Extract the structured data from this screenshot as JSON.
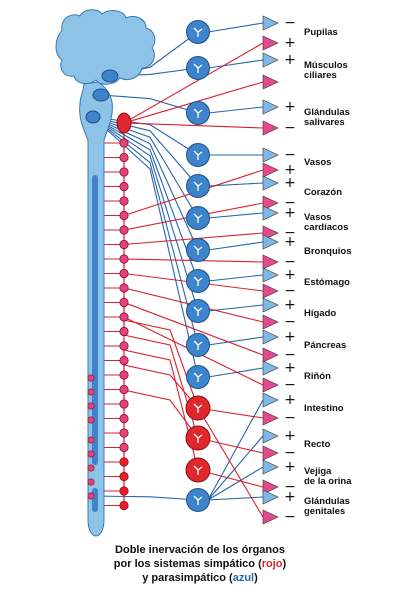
{
  "colors": {
    "sympathetic": "#d8212f",
    "parasympathetic": "#2565ad",
    "brain_fill": "#8ec3e8",
    "brain_stroke": "#3a78b5",
    "ganglion_blue": "#3d84cc",
    "ganglion_red": "#e0272d",
    "chain_node": "#e0457a",
    "target_blue": "#7fb8e6",
    "target_pink": "#e64a8e"
  },
  "organs": [
    {
      "label": "Pupilas",
      "signs": [
        "−",
        "+"
      ]
    },
    {
      "label": "Músculos\nciliares",
      "signs": [
        "+",
        ""
      ]
    },
    {
      "label": "Glándulas\nsalivares",
      "signs": [
        "+",
        "−"
      ]
    },
    {
      "label": "Vasos",
      "signs": [
        "−",
        "+"
      ]
    },
    {
      "label": "Corazón",
      "signs": [
        "+",
        "−"
      ]
    },
    {
      "label": "Vasos\ncardíacos",
      "signs": [
        "+",
        "−"
      ]
    },
    {
      "label": "Bronquios",
      "signs": [
        "+",
        "−"
      ]
    },
    {
      "label": "Estómago",
      "signs": [
        "+",
        "−"
      ]
    },
    {
      "label": "Hígado",
      "signs": [
        "+",
        "−"
      ]
    },
    {
      "label": "Páncreas",
      "signs": [
        "+",
        "−"
      ]
    },
    {
      "label": "Riñón",
      "signs": [
        "+",
        "−"
      ]
    },
    {
      "label": "Intestino",
      "signs": [
        "+",
        "−"
      ]
    },
    {
      "label": "Recto",
      "signs": [
        "+",
        "−"
      ]
    },
    {
      "label": "Vejiga\nde la orina",
      "signs": [
        "+",
        "−"
      ]
    },
    {
      "label": "Glándulas\ngenitales",
      "signs": [
        "+",
        "−"
      ]
    }
  ],
  "caption": {
    "line1": "Doble inervación de los órganos",
    "line2_prefix": "por los sistemas simpático (",
    "line2_red": "rojo",
    "line2_suffix": ")",
    "line3_prefix": "y parasimpático (",
    "line3_blue": "azul",
    "line3_suffix": ")"
  }
}
